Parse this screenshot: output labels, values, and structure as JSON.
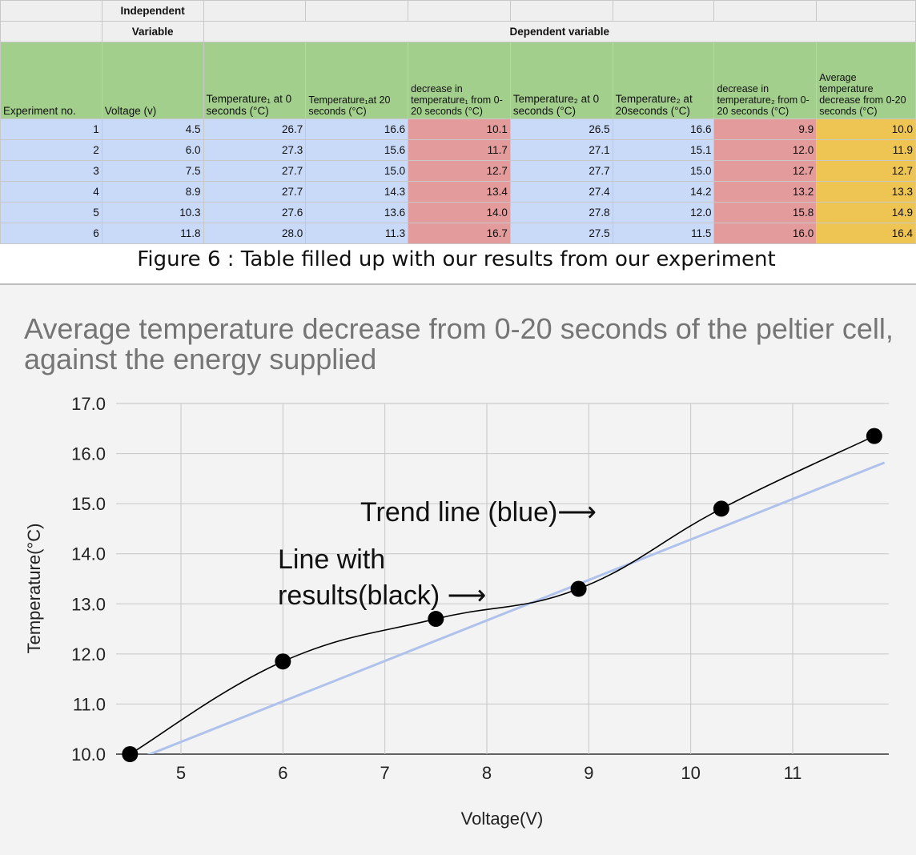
{
  "table": {
    "group_header_1": {
      "independent_line1": "Independent",
      "independent_line2": "Variable",
      "dependent": "Dependent variable"
    },
    "columns": [
      "Experiment no.",
      "Voltage (v)",
      "Temperature₁ at 0 seconds (°C)",
      "Temperature₁at 20 seconds (°C)",
      "decrease in temperature₁ from  0-20 seconds (°C)",
      "Temperature₂ at 0 seconds (°C)",
      "Temperature₂ at 20seconds (°C)",
      "decrease in temperature₂ from  0-20 seconds (°C)",
      "Average temperature decrease from 0-20 seconds (°C)"
    ],
    "rows": [
      [
        "1",
        "4.5",
        "26.7",
        "16.6",
        "10.1",
        "26.5",
        "16.6",
        "9.9",
        "10.0"
      ],
      [
        "2",
        "6.0",
        "27.3",
        "15.6",
        "11.7",
        "27.1",
        "15.1",
        "12.0",
        "11.9"
      ],
      [
        "3",
        "7.5",
        "27.7",
        "15.0",
        "12.7",
        "27.7",
        "15.0",
        "12.7",
        "12.7"
      ],
      [
        "4",
        "8.9",
        "27.7",
        "14.3",
        "13.4",
        "27.4",
        "14.2",
        "13.2",
        "13.3"
      ],
      [
        "5",
        "10.3",
        "27.6",
        "13.6",
        "14.0",
        "27.8",
        "12.0",
        "15.8",
        "14.9"
      ],
      [
        "6",
        "11.8",
        "28.0",
        "11.3",
        "16.7",
        "27.5",
        "11.5",
        "16.0",
        "16.4"
      ]
    ],
    "colors": {
      "header_green": "#a3cf8d",
      "data_blue": "#c9daf8",
      "decrease_red": "#e39b9b",
      "average_yellow": "#eec552"
    }
  },
  "caption": "Figure 6 : Table filled up with our results from our experiment",
  "chart_data": {
    "type": "line",
    "title": "Average temperature decrease from 0-20 seconds of the peltier cell, against the energy supplied",
    "xlabel": "Voltage(V)",
    "ylabel": "Temperature(°C)",
    "xlim": [
      4.5,
      11.9
    ],
    "ylim": [
      10.0,
      17.0
    ],
    "xticks": [
      "5",
      "6",
      "7",
      "8",
      "9",
      "10",
      "11"
    ],
    "yticks": [
      "10.0",
      "11.0",
      "12.0",
      "13.0",
      "14.0",
      "15.0",
      "16.0",
      "17.0"
    ],
    "grid": true,
    "series": [
      {
        "name": "",
        "color": "#000000",
        "x": [
          4.5,
          6.0,
          7.5,
          8.9,
          10.3,
          11.8
        ],
        "y": [
          10.0,
          11.85,
          12.7,
          13.3,
          14.9,
          16.35
        ]
      },
      {
        "name": "",
        "color": "#aec2ec",
        "x": [
          4.5,
          11.9
        ],
        "y": [
          9.84,
          15.82
        ]
      }
    ],
    "annotations": [
      {
        "text": "Trend line (blue)⟶"
      },
      {
        "text": "Line with"
      },
      {
        "text": "results(black) ⟶"
      }
    ]
  }
}
